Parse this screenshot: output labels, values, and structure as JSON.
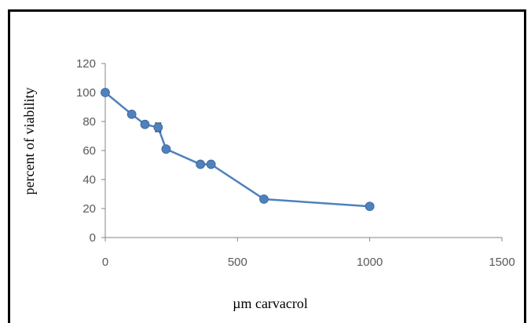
{
  "chart_data": {
    "type": "scatter",
    "title": "",
    "xlabel": "µm carvacrol",
    "ylabel": "percent of viability",
    "xlim": [
      0,
      1500
    ],
    "ylim": [
      0,
      120
    ],
    "xticks": [
      "0",
      "500",
      "1000",
      "1500"
    ],
    "yticks": [
      "0",
      "20",
      "40",
      "60",
      "80",
      "100",
      "120"
    ],
    "grid": false,
    "legend": "none",
    "series": [
      {
        "color": "#4f81bd",
        "x": [
          0,
          100,
          150,
          200,
          230,
          360,
          400,
          600,
          1000
        ],
        "y": [
          100,
          85,
          78,
          76,
          61,
          50.5,
          50.5,
          26.5,
          21.5
        ],
        "error": [
          0,
          1.5,
          1,
          3,
          1.5,
          0,
          0,
          0,
          0
        ]
      }
    ]
  }
}
